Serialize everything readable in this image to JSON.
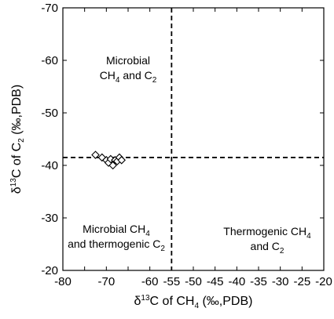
{
  "chart_data": {
    "type": "scatter",
    "xlabel": {
      "prefix": "δ",
      "sup": "13",
      "main": "C of CH",
      "sub": "4",
      "suffix": " (‰,PDB)"
    },
    "ylabel": {
      "prefix": "δ",
      "sup": "13",
      "main": "C of C",
      "sub": "2",
      "suffix": " (‰,PDB)"
    },
    "xlim": [
      -80,
      -20
    ],
    "ylim": [
      -20,
      -70
    ],
    "y_axis_inverted": true,
    "x_ticks": [
      -80,
      -75,
      -70,
      -65,
      -60,
      -55,
      -50,
      -45,
      -40,
      -35,
      -30,
      -25,
      -20
    ],
    "x_tick_labels": [
      "-80",
      "",
      "-70",
      "",
      "-60",
      "-55",
      "-50",
      "-45",
      "-40",
      "-35",
      "-30",
      "-25",
      "-20"
    ],
    "y_ticks": [
      -20,
      -30,
      -40,
      -50,
      -60,
      -70
    ],
    "y_tick_labels": [
      "-20",
      "-30",
      "-40",
      "-50",
      "-60",
      "-70"
    ],
    "grid": false,
    "marker": "diamond-open",
    "threshold_lines": {
      "x": -55,
      "y": -41.5
    },
    "points": [
      {
        "x": -72.5,
        "y": -42.0
      },
      {
        "x": -71.0,
        "y": -41.5
      },
      {
        "x": -70.0,
        "y": -41.0
      },
      {
        "x": -69.5,
        "y": -40.5
      },
      {
        "x": -69.0,
        "y": -41.2
      },
      {
        "x": -68.5,
        "y": -40.0
      },
      {
        "x": -68.0,
        "y": -41.0
      },
      {
        "x": -67.5,
        "y": -40.8
      },
      {
        "x": -67.0,
        "y": -41.5
      },
      {
        "x": -66.5,
        "y": -41.0
      }
    ],
    "regions": [
      {
        "lines": [
          {
            "text": "Microbial"
          },
          {
            "main": "CH",
            "sub": "4",
            "suffix": " and C",
            "sub2": "2"
          }
        ]
      },
      {
        "lines": [
          {
            "main": "Microbial CH",
            "sub": "4"
          },
          {
            "main": "and thermogenic C",
            "sub": "2"
          }
        ]
      },
      {
        "lines": [
          {
            "main": "Thermogenic CH",
            "sub": "4"
          },
          {
            "main": "and  C",
            "sub": "2"
          }
        ]
      }
    ]
  }
}
